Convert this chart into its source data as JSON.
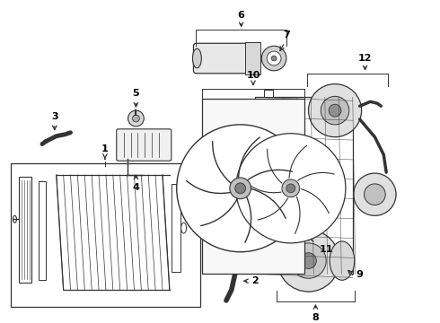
{
  "bg_color": "#ffffff",
  "line_color": "#333333",
  "label_color": "#000000",
  "fig_w": 4.9,
  "fig_h": 3.6,
  "dpi": 100
}
